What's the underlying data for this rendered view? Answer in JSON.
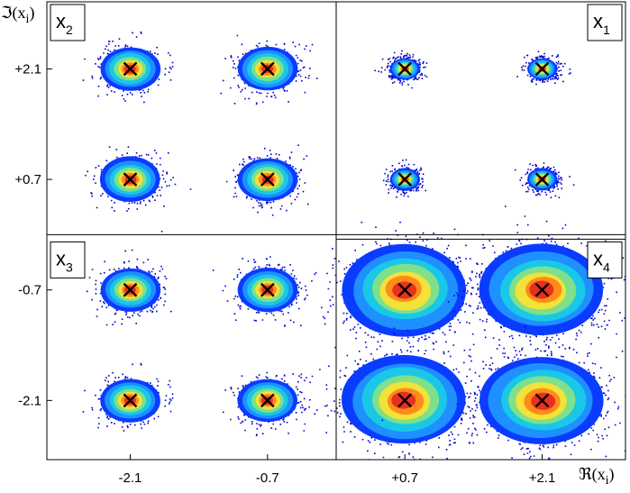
{
  "chart_data": {
    "type": "scatter",
    "xlabel": {
      "main": "ℜ(x",
      "sub": "i",
      "close": ")"
    },
    "ylabel": {
      "main": "ℑ(x",
      "sub": "i",
      "close": ")"
    },
    "xlim": [
      -2.95,
      2.95
    ],
    "ylim": [
      -2.85,
      2.95
    ],
    "grid": false,
    "x_ticks": [
      {
        "value": -2.1,
        "label": "-2.1"
      },
      {
        "value": -0.7,
        "label": "-0.7"
      },
      {
        "value": 0.7,
        "label": "+0.7"
      },
      {
        "value": 2.1,
        "label": "+2.1"
      }
    ],
    "y_ticks": [
      {
        "value": 2.1,
        "label": "+2.1"
      },
      {
        "value": 0.7,
        "label": "+0.7"
      },
      {
        "value": -0.7,
        "label": "-0.7"
      },
      {
        "value": -2.1,
        "label": "-2.1"
      }
    ],
    "quadrant_dividers": {
      "x": 0.0,
      "y": 0.0
    },
    "quadrants": [
      {
        "label_main": "x",
        "label_sub": "1",
        "position": "top-right",
        "spread": 0.15
      },
      {
        "label_main": "x",
        "label_sub": "2",
        "position": "top-left",
        "spread": 0.3
      },
      {
        "label_main": "x",
        "label_sub": "3",
        "position": "bottom-left",
        "spread": 0.3
      },
      {
        "label_main": "x",
        "label_sub": "4",
        "position": "bottom-right",
        "spread": 0.62
      }
    ],
    "series": [
      {
        "points": [
          {
            "x": 0.7,
            "y": 2.1
          },
          {
            "x": 2.1,
            "y": 2.1
          },
          {
            "x": 0.7,
            "y": 0.7
          },
          {
            "x": 2.1,
            "y": 0.7
          }
        ]
      },
      {
        "points": [
          {
            "x": -2.1,
            "y": 2.1
          },
          {
            "x": -0.7,
            "y": 2.1
          },
          {
            "x": -2.1,
            "y": 0.7
          },
          {
            "x": -0.7,
            "y": 0.7
          }
        ]
      },
      {
        "points": [
          {
            "x": -2.1,
            "y": -0.7
          },
          {
            "x": -0.7,
            "y": -0.7
          },
          {
            "x": -2.1,
            "y": -2.1
          },
          {
            "x": -0.7,
            "y": -2.1
          }
        ]
      },
      {
        "points": [
          {
            "x": 0.7,
            "y": -0.7
          },
          {
            "x": 2.1,
            "y": -0.7
          },
          {
            "x": 0.7,
            "y": -2.1
          },
          {
            "x": 2.1,
            "y": -2.1
          }
        ]
      }
    ],
    "marker": "×",
    "colors": [
      "#0000c8",
      "#0a3cff",
      "#1e90ff",
      "#19c8e6",
      "#7ee08a",
      "#f2e23a",
      "#ff8c1a",
      "#e8301e"
    ],
    "marker_color": "#000000"
  }
}
